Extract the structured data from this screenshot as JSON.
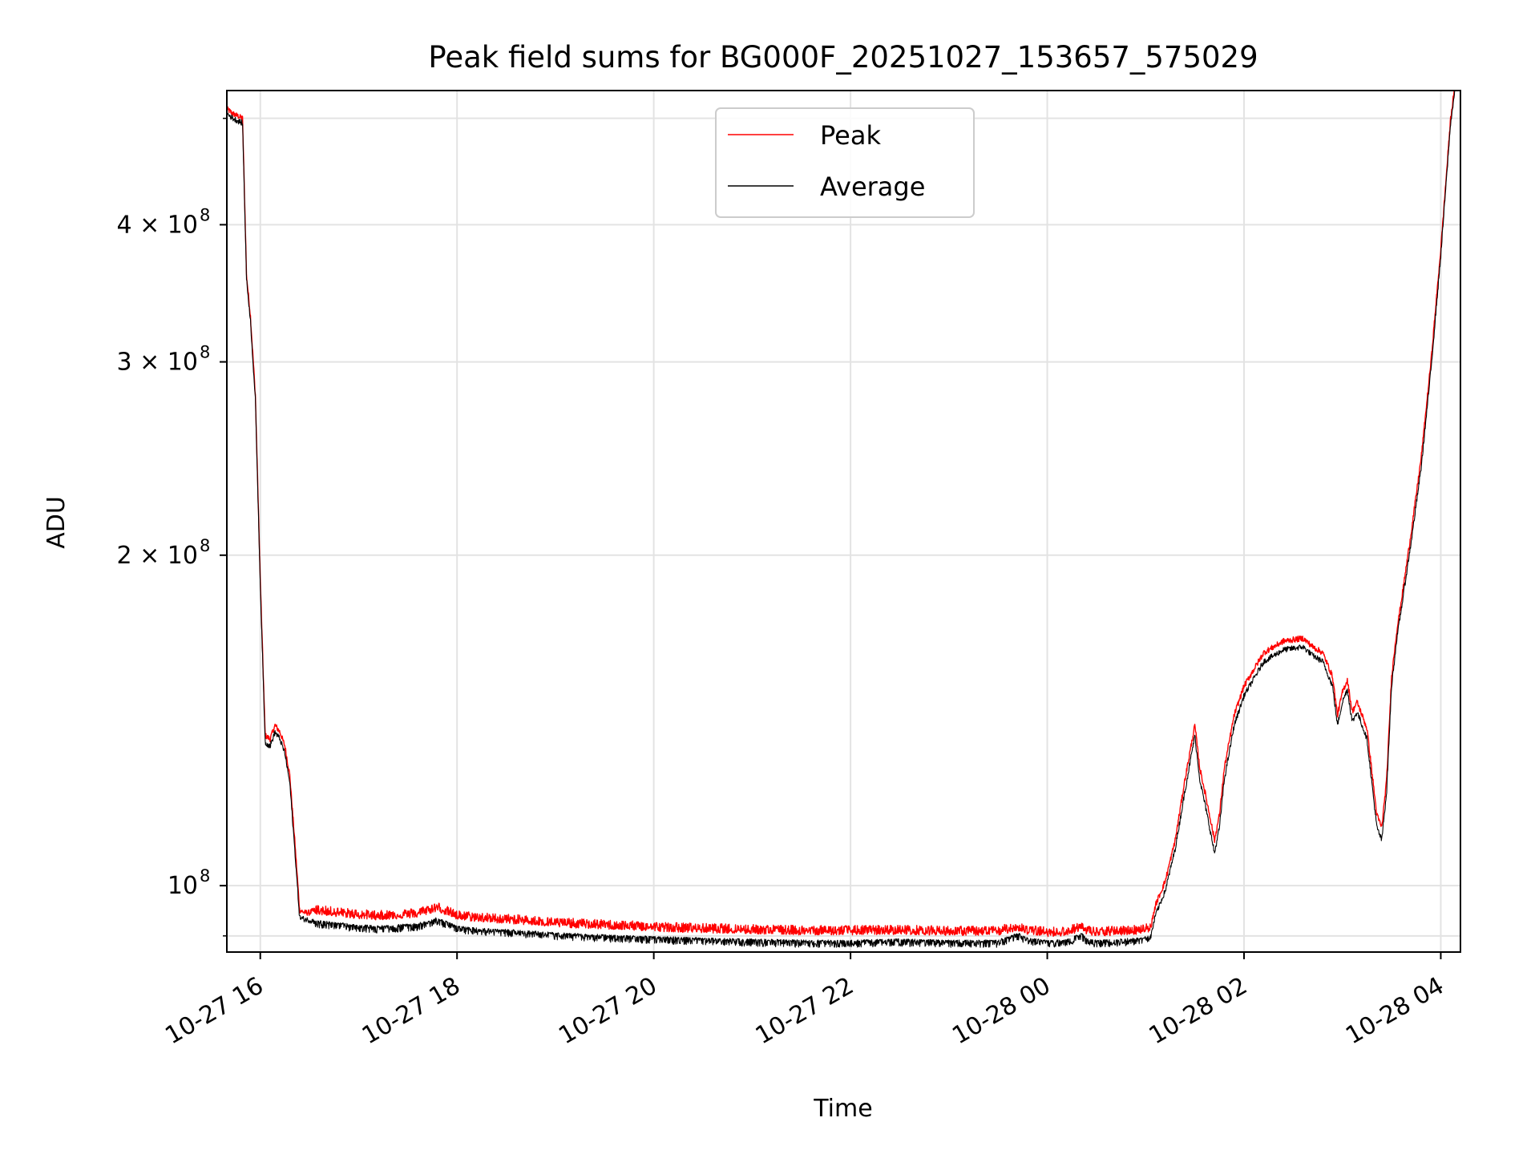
{
  "chart_data": {
    "type": "line",
    "title": "Peak field sums for BG000F_20251027_153657_575029",
    "xlabel": "Time",
    "ylabel": "ADU",
    "yscale": "log",
    "grid": true,
    "legend_position": "top-center",
    "x_unit": "hours since 10-27 00:00",
    "xlim": [
      15.66,
      28.2
    ],
    "ylim": [
      87000000,
      530000000
    ],
    "x_ticks": [
      {
        "value": 16,
        "label": "10-27 16"
      },
      {
        "value": 18,
        "label": "10-27 18"
      },
      {
        "value": 20,
        "label": "10-27 20"
      },
      {
        "value": 22,
        "label": "10-27 22"
      },
      {
        "value": 24,
        "label": "10-28 00"
      },
      {
        "value": 26,
        "label": "10-28 02"
      },
      {
        "value": 28,
        "label": "10-28 04"
      }
    ],
    "y_ticks": [
      {
        "value": 100000000,
        "mantissa": "10",
        "exp": "8"
      },
      {
        "value": 200000000,
        "mantissa": "2 × 10",
        "exp": "8"
      },
      {
        "value": 300000000,
        "mantissa": "3 × 10",
        "exp": "8"
      },
      {
        "value": 400000000,
        "mantissa": "4 × 10",
        "exp": "8"
      }
    ],
    "y_minor_ticks": [
      90000000,
      500000000
    ],
    "series": [
      {
        "name": "Peak",
        "color": "#ff0000",
        "x": [
          15.66,
          15.72,
          15.78,
          15.82,
          15.86,
          15.9,
          15.95,
          16.0,
          16.05,
          16.1,
          16.15,
          16.2,
          16.25,
          16.3,
          16.35,
          16.4,
          16.45,
          16.5,
          16.55,
          16.6,
          16.8,
          17.0,
          17.2,
          17.4,
          17.6,
          17.8,
          18.0,
          18.3,
          18.6,
          19.0,
          19.5,
          20.0,
          20.5,
          21.0,
          21.5,
          22.0,
          22.5,
          23.0,
          23.5,
          23.7,
          23.8,
          23.9,
          24.0,
          24.2,
          24.35,
          24.4,
          24.5,
          24.7,
          24.9,
          25.05,
          25.1,
          25.2,
          25.3,
          25.4,
          25.5,
          25.55,
          25.6,
          25.65,
          25.7,
          25.75,
          25.8,
          25.9,
          26.0,
          26.2,
          26.4,
          26.6,
          26.7,
          26.8,
          26.9,
          26.95,
          27.0,
          27.05,
          27.1,
          27.15,
          27.2,
          27.25,
          27.3,
          27.35,
          27.4,
          27.45,
          27.5,
          27.55,
          27.6,
          27.7,
          27.8,
          27.9,
          28.0,
          28.1,
          28.15
        ],
        "values": [
          510000000,
          505000000,
          502000000,
          500000000,
          360000000,
          330000000,
          280000000,
          190000000,
          137000000,
          136000000,
          140000000,
          138000000,
          134000000,
          126000000,
          110000000,
          95000000,
          94500000,
          94500000,
          95000000,
          94800000,
          94400000,
          94000000,
          93800000,
          94000000,
          94300000,
          95500000,
          93800000,
          93300000,
          93000000,
          92400000,
          92000000,
          91600000,
          91300000,
          91100000,
          90900000,
          90900000,
          91000000,
          90800000,
          90800000,
          91700000,
          91000000,
          90800000,
          90600000,
          90700000,
          91700000,
          90900000,
          90600000,
          90800000,
          91000000,
          91500000,
          96000000,
          101000000,
          110000000,
          125000000,
          140000000,
          128000000,
          122000000,
          116000000,
          110000000,
          116000000,
          128000000,
          143000000,
          152000000,
          163000000,
          167000000,
          168000000,
          165000000,
          163000000,
          155000000,
          143000000,
          150000000,
          154000000,
          144000000,
          147000000,
          143000000,
          139000000,
          127000000,
          116000000,
          113000000,
          125000000,
          155000000,
          170000000,
          182000000,
          210000000,
          245000000,
          300000000,
          380000000,
          500000000,
          540000000
        ]
      },
      {
        "name": "Average",
        "color": "#000000",
        "x": [
          15.66,
          15.72,
          15.78,
          15.82,
          15.86,
          15.9,
          15.95,
          16.0,
          16.05,
          16.1,
          16.15,
          16.2,
          16.25,
          16.3,
          16.35,
          16.4,
          16.45,
          16.5,
          16.55,
          16.6,
          16.8,
          17.0,
          17.2,
          17.4,
          17.6,
          17.8,
          18.0,
          18.3,
          18.6,
          19.0,
          19.5,
          20.0,
          20.5,
          21.0,
          21.5,
          22.0,
          22.5,
          23.0,
          23.5,
          23.7,
          23.8,
          23.9,
          24.0,
          24.2,
          24.35,
          24.4,
          24.5,
          24.7,
          24.9,
          25.05,
          25.1,
          25.2,
          25.3,
          25.4,
          25.5,
          25.55,
          25.6,
          25.65,
          25.7,
          25.75,
          25.8,
          25.9,
          26.0,
          26.2,
          26.4,
          26.6,
          26.7,
          26.8,
          26.9,
          26.95,
          27.0,
          27.05,
          27.1,
          27.15,
          27.2,
          27.25,
          27.3,
          27.35,
          27.4,
          27.45,
          27.5,
          27.55,
          27.6,
          27.7,
          27.8,
          27.9,
          28.0,
          28.1,
          28.15
        ],
        "values": [
          505000000,
          500000000,
          497000000,
          495000000,
          357000000,
          327000000,
          277000000,
          188000000,
          135000000,
          134000000,
          138000000,
          136000000,
          132000000,
          124000000,
          108000000,
          93500000,
          93200000,
          93000000,
          92800000,
          92600000,
          92200000,
          91800000,
          91600000,
          91800000,
          92100000,
          93200000,
          91600000,
          91100000,
          90800000,
          90300000,
          89900000,
          89600000,
          89300000,
          89100000,
          88900000,
          88900000,
          89100000,
          88900000,
          88900000,
          90300000,
          89300000,
          89100000,
          88900000,
          89000000,
          90300000,
          89200000,
          88900000,
          89100000,
          89300000,
          89700000,
          94000000,
          99000000,
          108000000,
          122000000,
          137000000,
          125000000,
          119000000,
          113000000,
          107000000,
          113000000,
          125000000,
          140000000,
          149000000,
          160000000,
          164000000,
          165000000,
          162000000,
          160000000,
          152000000,
          140000000,
          147000000,
          151000000,
          141000000,
          144000000,
          140000000,
          136000000,
          124000000,
          113000000,
          110000000,
          122000000,
          152000000,
          167000000,
          179000000,
          206000000,
          240000000,
          295000000,
          375000000,
          495000000,
          535000000
        ]
      }
    ]
  }
}
